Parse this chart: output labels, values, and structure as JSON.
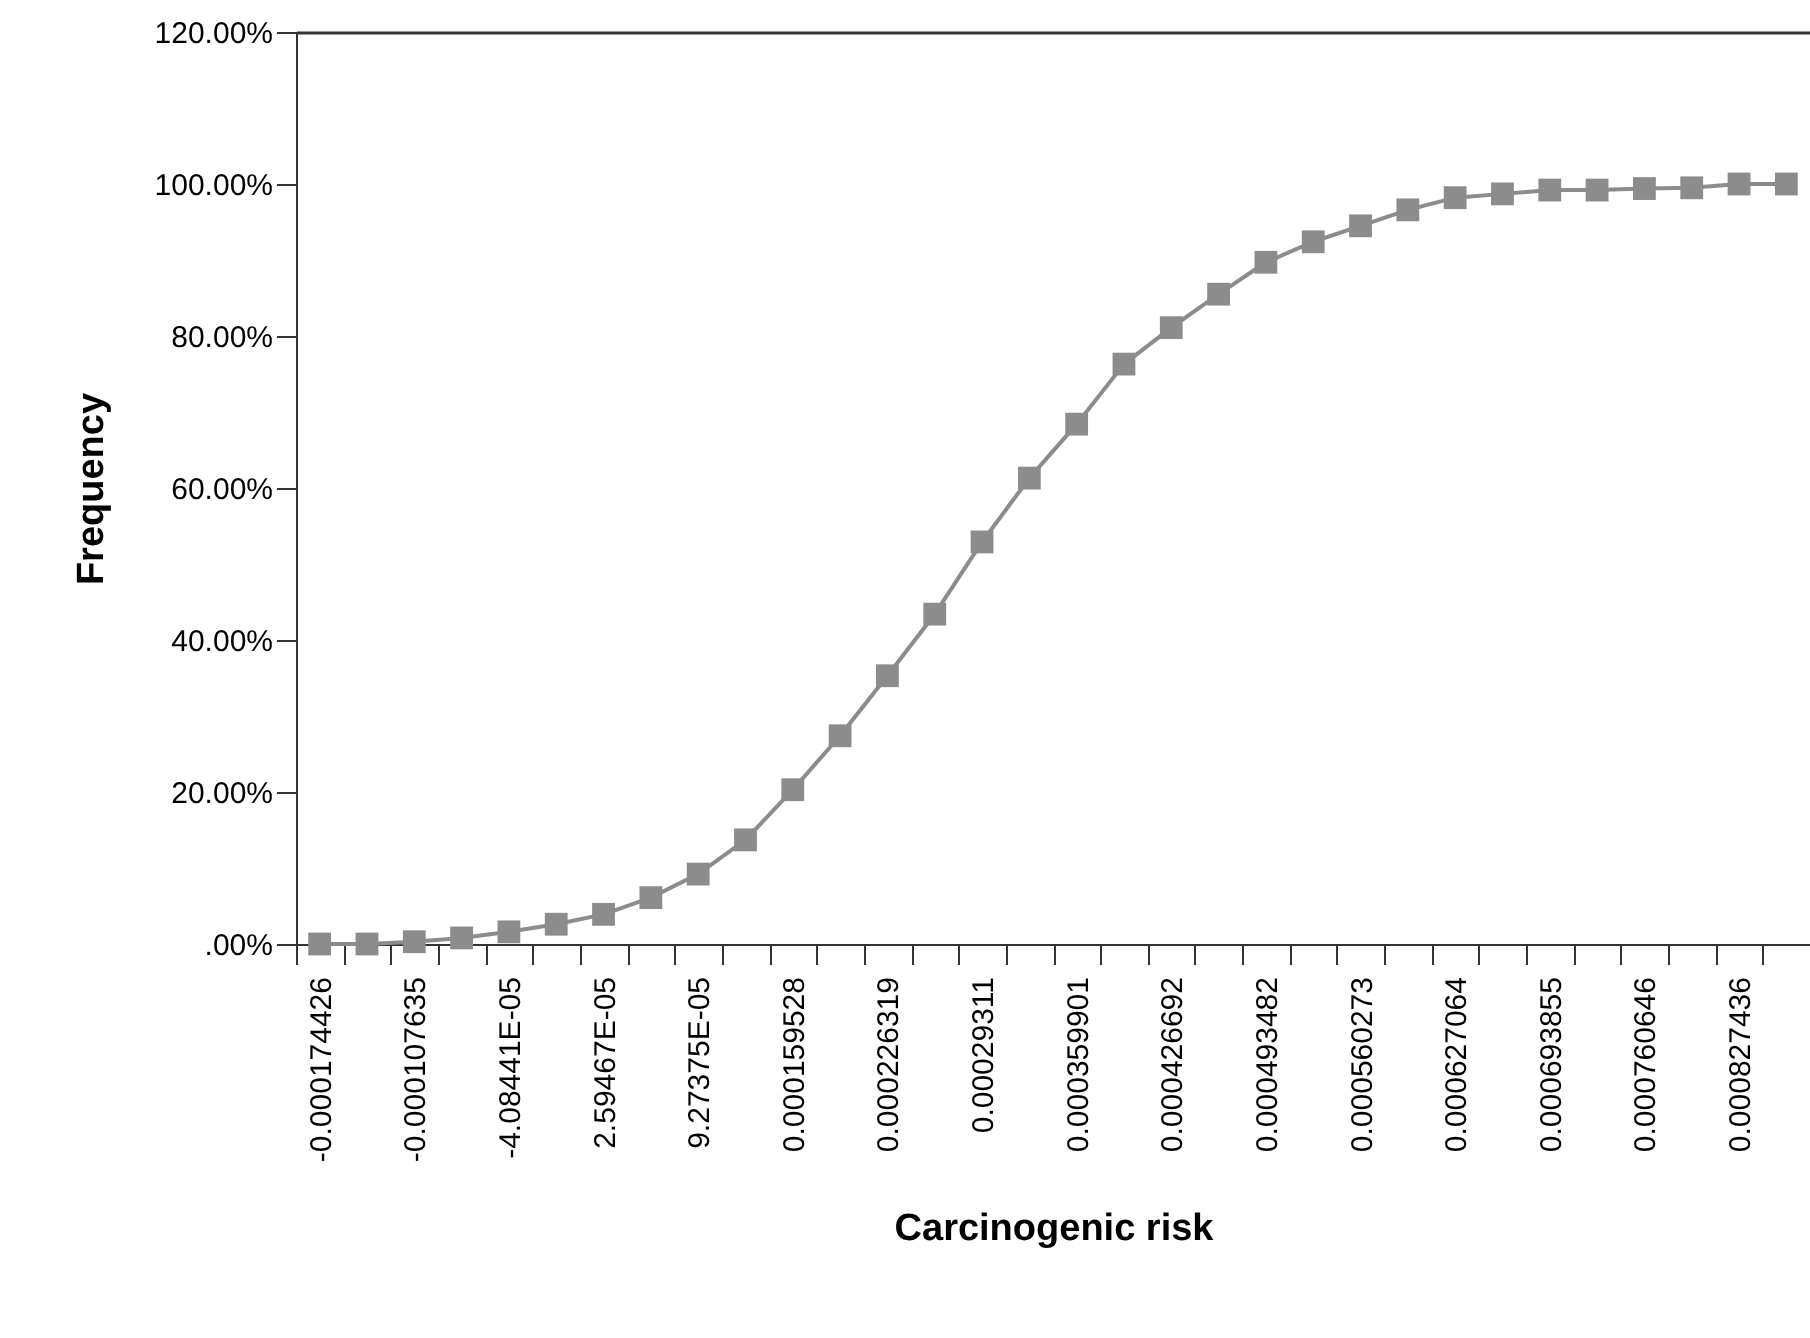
{
  "chart_data": {
    "type": "line",
    "xlabel": "Carcinogenic risk",
    "ylabel": "Frequency",
    "categories": [
      "-0.000174426",
      null,
      "-0.000107635",
      null,
      "-4.08441E-05",
      null,
      "2.59467E-05",
      null,
      "9.27375E-05",
      null,
      "0.000159528",
      null,
      "0.000226319",
      null,
      "0.00029311",
      null,
      "0.000359901",
      null,
      "0.000426692",
      null,
      "0.000493482",
      null,
      "0.000560273",
      null,
      "0.000627064",
      null,
      "0.000693855",
      null,
      "0.000760646",
      null,
      "0.000827436",
      null
    ],
    "series": [
      {
        "color": "#8c8c8c",
        "values": [
          0,
          0,
          0.3,
          0.8,
          1.6,
          2.6,
          3.9,
          6.1,
          9.2,
          13.7,
          20.3,
          27.4,
          35.3,
          43.4,
          52.9,
          61.3,
          68.4,
          76.3,
          81.1,
          85.5,
          89.7,
          92.4,
          94.5,
          96.6,
          98.2,
          98.7,
          99.2,
          99.2,
          99.4,
          99.5,
          100,
          100
        ]
      }
    ],
    "ylim": [
      0,
      120
    ],
    "yticks": [
      {
        "value": 0,
        "label": ".00%"
      },
      {
        "value": 20,
        "label": "20.00%"
      },
      {
        "value": 40,
        "label": "40.00%"
      },
      {
        "value": 60,
        "label": "60.00%"
      },
      {
        "value": 80,
        "label": "80.00%"
      },
      {
        "value": 100,
        "label": "100.00%"
      },
      {
        "value": 120,
        "label": "120.00%"
      }
    ],
    "marker": "square",
    "line_style": "solid"
  }
}
